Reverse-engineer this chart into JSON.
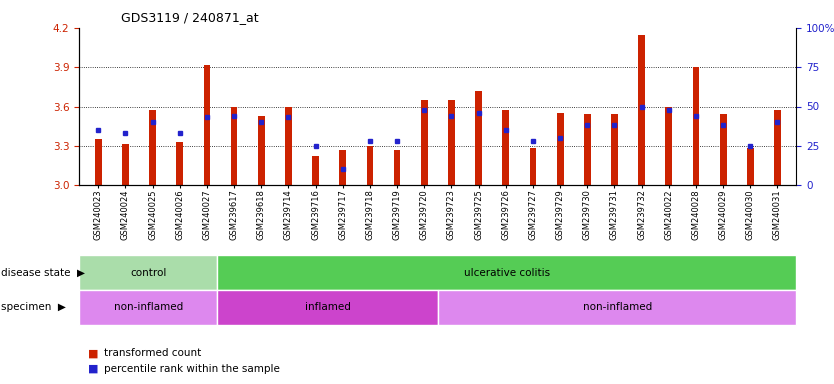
{
  "title": "GDS3119 / 240871_at",
  "samples": [
    "GSM240023",
    "GSM240024",
    "GSM240025",
    "GSM240026",
    "GSM240027",
    "GSM239617",
    "GSM239618",
    "GSM239714",
    "GSM239716",
    "GSM239717",
    "GSM239718",
    "GSM239719",
    "GSM239720",
    "GSM239723",
    "GSM239725",
    "GSM239726",
    "GSM239727",
    "GSM239729",
    "GSM239730",
    "GSM239731",
    "GSM239732",
    "GSM240022",
    "GSM240028",
    "GSM240029",
    "GSM240030",
    "GSM240031"
  ],
  "transformed_count": [
    3.35,
    3.31,
    3.57,
    3.33,
    3.92,
    3.6,
    3.53,
    3.6,
    3.22,
    3.27,
    3.3,
    3.27,
    3.65,
    3.65,
    3.72,
    3.57,
    3.28,
    3.55,
    3.54,
    3.54,
    4.15,
    3.6,
    3.9,
    3.54,
    3.28,
    3.57
  ],
  "percentile_rank": [
    35,
    33,
    40,
    33,
    43,
    44,
    40,
    43,
    25,
    10,
    28,
    28,
    48,
    44,
    46,
    35,
    28,
    30,
    38,
    38,
    50,
    48,
    44,
    38,
    25,
    40
  ],
  "ylim_left": [
    3.0,
    4.2
  ],
  "ylim_right": [
    0,
    100
  ],
  "yticks_left": [
    3.0,
    3.3,
    3.6,
    3.9,
    4.2
  ],
  "yticks_right": [
    0,
    25,
    50,
    75,
    100
  ],
  "bar_color": "#cc2200",
  "dot_color": "#2222cc",
  "disease_state_groups": [
    {
      "label": "control",
      "start": 0,
      "end": 5,
      "color": "#aaddaa"
    },
    {
      "label": "ulcerative colitis",
      "start": 5,
      "end": 26,
      "color": "#55cc55"
    }
  ],
  "specimen_groups": [
    {
      "label": "non-inflamed",
      "start": 0,
      "end": 5,
      "color": "#dd88ee"
    },
    {
      "label": "inflamed",
      "start": 5,
      "end": 13,
      "color": "#cc44cc"
    },
    {
      "label": "non-inflamed",
      "start": 13,
      "end": 26,
      "color": "#dd88ee"
    }
  ],
  "grid_yticks": [
    3.3,
    3.6,
    3.9
  ]
}
